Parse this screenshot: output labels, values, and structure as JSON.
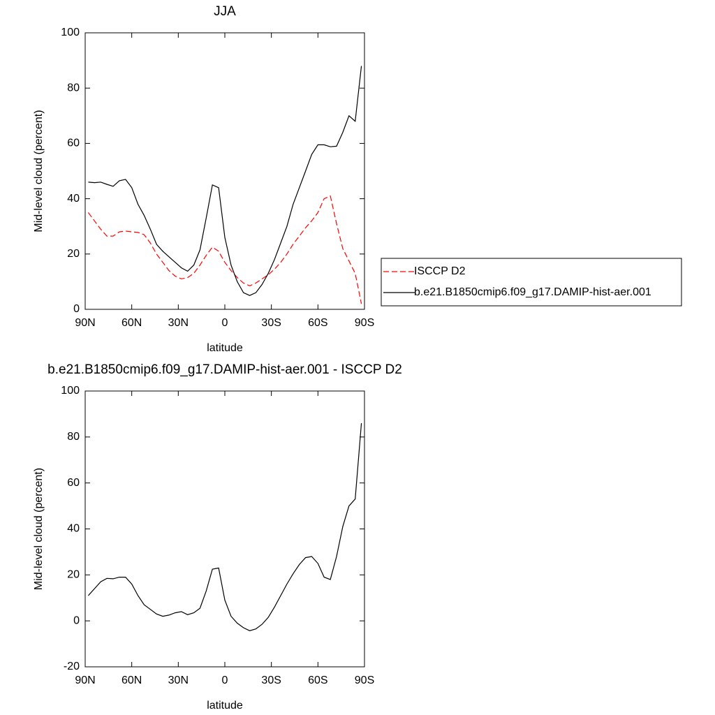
{
  "chart_data": [
    {
      "type": "line",
      "title": "JJA",
      "x_label": "latitude",
      "y_label": "Mid-level cloud (percent)",
      "x": [
        88,
        84,
        80,
        76,
        72,
        68,
        64,
        60,
        56,
        52,
        48,
        44,
        40,
        36,
        32,
        28,
        24,
        20,
        16,
        12,
        8,
        4,
        0,
        -4,
        -8,
        -12,
        -16,
        -20,
        -24,
        -28,
        -32,
        -36,
        -40,
        -44,
        -48,
        -52,
        -56,
        -60,
        -64,
        -68,
        -72,
        -76,
        -80,
        -84,
        -88
      ],
      "series": [
        {
          "name": "ISCCP D2",
          "color": "#ff0000",
          "linestyle": "dashed",
          "values": [
            35,
            32,
            29,
            26.5,
            26.5,
            28,
            28.3,
            28,
            27.8,
            27,
            24,
            20,
            17,
            14,
            12,
            11,
            11.5,
            13,
            16,
            19.5,
            22.5,
            21,
            17,
            14,
            11.5,
            9.5,
            8.5,
            9.5,
            11,
            12.5,
            14.5,
            17,
            20,
            23.5,
            26.5,
            29.5,
            32,
            35,
            40,
            41,
            31,
            22,
            17.5,
            13,
            2
          ]
        },
        {
          "name": "b.e21.B1850cmip6.f09_g17.DAMIP-hist-aer.001",
          "color": "#000000",
          "linestyle": "solid",
          "values": [
            46,
            45.8,
            46,
            45.2,
            44.5,
            46.5,
            47,
            44,
            38,
            34,
            29,
            23.5,
            21,
            19,
            17,
            15,
            13.8,
            16,
            21.5,
            33,
            45,
            44,
            26,
            16,
            10,
            6,
            5,
            6,
            9,
            13,
            18,
            24,
            30,
            38,
            44,
            50,
            56,
            59.5,
            59.5,
            58.8,
            59,
            64,
            70,
            68,
            88
          ]
        }
      ],
      "xlim": [
        90,
        -90
      ],
      "xticks": [
        {
          "value": 90,
          "label": "90N"
        },
        {
          "value": 60,
          "label": "60N"
        },
        {
          "value": 30,
          "label": "30N"
        },
        0,
        {
          "value": -30,
          "label": "30S"
        },
        {
          "value": -60,
          "label": "60S"
        },
        {
          "value": -90,
          "label": "90S"
        }
      ],
      "ylim": [
        0,
        100
      ],
      "yticks": [
        0,
        20,
        40,
        60,
        80,
        100
      ],
      "legend": "right"
    },
    {
      "type": "line",
      "title": "b.e21.B1850cmip6.f09_g17.DAMIP-hist-aer.001 - ISCCP D2",
      "x_label": "latitude",
      "y_label": "Mid-level cloud (percent)",
      "x": [
        88,
        84,
        80,
        76,
        72,
        68,
        64,
        60,
        56,
        52,
        48,
        44,
        40,
        36,
        32,
        28,
        24,
        20,
        16,
        12,
        8,
        4,
        0,
        -4,
        -8,
        -12,
        -16,
        -20,
        -24,
        -28,
        -32,
        -36,
        -40,
        -44,
        -48,
        -52,
        -56,
        -60,
        -64,
        -68,
        -72,
        -76,
        -80,
        -84,
        -88
      ],
      "color": "#000000",
      "values": [
        11,
        14,
        17,
        18.5,
        18.3,
        19,
        19,
        16,
        11,
        7,
        5,
        3,
        2,
        2.5,
        3.5,
        4,
        2.7,
        3.5,
        5.5,
        13,
        22.5,
        23,
        9,
        2,
        -1,
        -3,
        -4.3,
        -3.5,
        -1.5,
        1.5,
        6,
        11,
        16,
        20.5,
        24.5,
        27.5,
        28,
        25,
        19,
        18,
        28,
        41,
        50,
        53,
        86
      ],
      "xlim": [
        90,
        -90
      ],
      "xticks": [
        {
          "value": 90,
          "label": "90N"
        },
        {
          "value": 60,
          "label": "60N"
        },
        {
          "value": 30,
          "label": "30N"
        },
        0,
        {
          "value": -30,
          "label": "30S"
        },
        {
          "value": -60,
          "label": "60S"
        },
        {
          "value": -90,
          "label": "90S"
        }
      ],
      "ylim": [
        -20,
        100
      ],
      "yticks": [
        -20,
        0,
        20,
        40,
        60,
        80,
        100
      ]
    }
  ]
}
